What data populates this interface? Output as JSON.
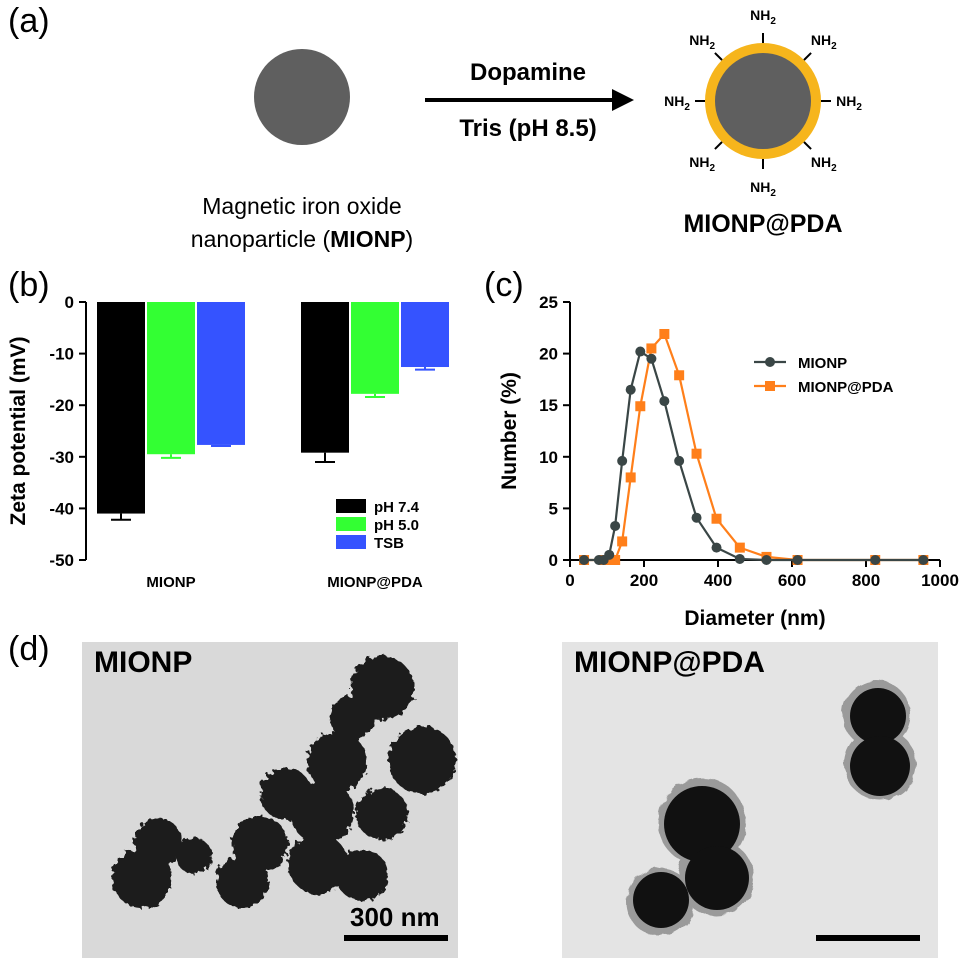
{
  "panel_a": {
    "label": "(a)",
    "reagent_top": "Dopamine",
    "reagent_bottom": "Tris (pH 8.5)",
    "start_caption_line1": "Magnetic iron oxide",
    "start_caption_line2_prefix": "nanoparticle (",
    "start_caption_bold": "MIONP",
    "start_caption_suffix": ")",
    "product_caption": "MIONP@PDA",
    "amine_group": "NH",
    "amine_subscript": "2",
    "colors": {
      "core": "#5f5f5f",
      "shell": "#f6b51c"
    }
  },
  "panel_b": {
    "label": "(b)",
    "ylabel": "Zeta potential (mV)",
    "legend": [
      "pH 7.4",
      "pH 5.0",
      "TSB"
    ],
    "colors": [
      "#000000",
      "#33ff33",
      "#3553ff"
    ],
    "y_ticks": [
      "0",
      "-10",
      "-20",
      "-30",
      "-40",
      "-50"
    ],
    "categories": [
      "MIONP",
      "MIONP@PDA"
    ]
  },
  "panel_c": {
    "label": "(c)",
    "xlabel": "Diameter (nm)",
    "ylabel": "Number (%)",
    "legend": [
      "MIONP",
      "MIONP@PDA"
    ],
    "colors": [
      "#3a4646",
      "#ff7f1a"
    ],
    "x_ticks": [
      "0",
      "200",
      "400",
      "600",
      "800",
      "1000"
    ],
    "y_ticks": [
      "0",
      "5",
      "10",
      "15",
      "20",
      "25"
    ]
  },
  "panel_d": {
    "label": "(d)",
    "left_title": "MIONP",
    "right_title": "MIONP@PDA",
    "scale_label": "300 nm"
  },
  "chart_data": [
    {
      "type": "bar",
      "categories": [
        "MIONP",
        "MIONP@PDA"
      ],
      "series": [
        {
          "name": "pH 7.4",
          "values": [
            -41.0,
            -29.2
          ],
          "errors": [
            1.2,
            1.8
          ]
        },
        {
          "name": "pH 5.0",
          "values": [
            -29.5,
            -17.8
          ],
          "errors": [
            0.7,
            0.6
          ]
        },
        {
          "name": "TSB",
          "values": [
            -27.7,
            -12.6
          ],
          "errors": [
            0.2,
            0.5
          ]
        }
      ],
      "ylabel": "Zeta potential (mV)",
      "ylim": [
        -50,
        0
      ],
      "legend_position": "bottom-right"
    },
    {
      "type": "line",
      "series": [
        {
          "name": "MIONP",
          "x": [
            38,
            78,
            91,
            106,
            122,
            141,
            164,
            190,
            220,
            255,
            295,
            342,
            396,
            459,
            531,
            615,
            825,
            955
          ],
          "y": [
            0,
            0,
            0,
            0.5,
            3.3,
            9.6,
            16.5,
            20.2,
            19.5,
            15.4,
            9.6,
            4.1,
            1.2,
            0.1,
            0,
            0,
            0,
            0
          ]
        },
        {
          "name": "MIONP@PDA",
          "x": [
            38,
            91,
            106,
            122,
            141,
            164,
            190,
            220,
            255,
            295,
            342,
            396,
            459,
            531,
            615,
            825,
            955
          ],
          "y": [
            0,
            0,
            0,
            0,
            1.8,
            8.0,
            14.9,
            20.5,
            21.9,
            17.9,
            10.3,
            4.0,
            1.2,
            0.3,
            0,
            0,
            0
          ]
        }
      ],
      "xlabel": "Diameter (nm)",
      "ylabel": "Number (%)",
      "xlim": [
        0,
        1000
      ],
      "ylim": [
        0,
        25
      ],
      "legend_position": "top-right"
    }
  ]
}
